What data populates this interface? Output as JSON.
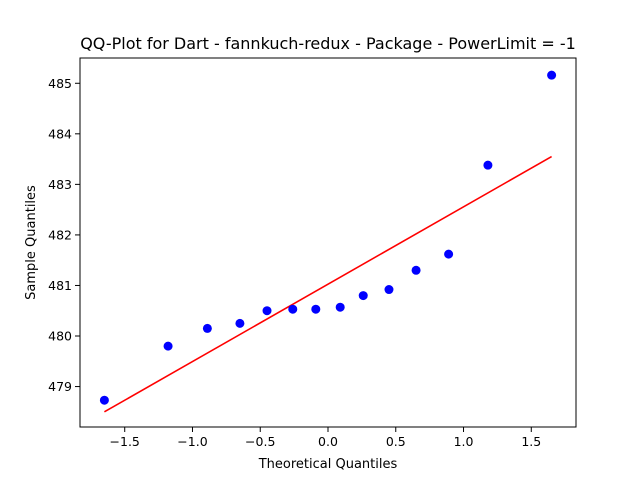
{
  "chart_data": {
    "type": "scatter",
    "title": "QQ-Plot for Dart - fannkuch-redux - Package - PowerLimit = -1",
    "xlabel": "Theoretical Quantiles",
    "ylabel": "Sample Quantiles",
    "xlim": [
      -1.83,
      1.83
    ],
    "ylim": [
      478.2,
      485.5
    ],
    "xticks": [
      -1.5,
      -1.0,
      -0.5,
      0.0,
      0.5,
      1.0,
      1.5
    ],
    "xtick_labels": [
      "−1.5",
      "−1.0",
      "−0.5",
      "0.0",
      "0.5",
      "1.0",
      "1.5"
    ],
    "yticks": [
      479,
      480,
      481,
      482,
      483,
      484,
      485
    ],
    "ytick_labels": [
      "479",
      "480",
      "481",
      "482",
      "483",
      "484",
      "485"
    ],
    "grid": false,
    "series": [
      {
        "kind": "points",
        "color": "#0000ff",
        "x": [
          -1.65,
          -1.18,
          -0.89,
          -0.65,
          -0.45,
          -0.26,
          -0.09,
          0.09,
          0.26,
          0.45,
          0.65,
          0.89,
          1.18,
          1.65
        ],
        "y": [
          478.73,
          479.8,
          480.15,
          480.25,
          480.5,
          480.53,
          480.53,
          480.57,
          480.8,
          480.92,
          481.3,
          481.62,
          483.38,
          485.16
        ]
      },
      {
        "kind": "line",
        "color": "#ff0000",
        "x": [
          -1.65,
          1.65
        ],
        "y": [
          478.5,
          483.55
        ]
      }
    ]
  }
}
